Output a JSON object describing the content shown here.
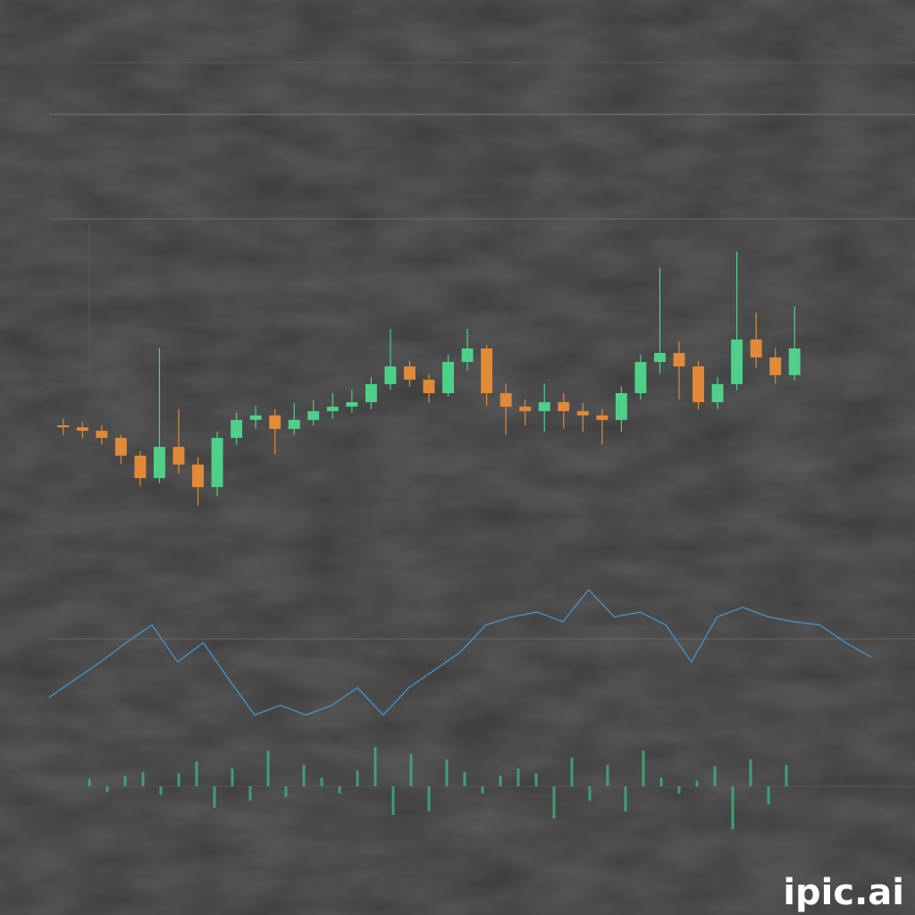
{
  "watermark": "ipic.ai",
  "chart_data": [
    {
      "type": "candlestick",
      "up_color": "#4fd08a",
      "down_color": "#e08a3a",
      "ylim": [
        0,
        100
      ],
      "open": [
        40.0,
        39.4,
        38.3,
        36.1,
        30.6,
        23.6,
        33.3,
        27.8,
        20.8,
        36.1,
        41.7,
        43.1,
        38.9,
        41.7,
        44.4,
        45.8,
        47.2,
        52.8,
        58.3,
        54.2,
        50.0,
        59.7,
        63.9,
        50.0,
        45.8,
        44.4,
        47.2,
        44.4,
        43.1,
        41.7,
        50.0,
        59.7,
        62.5,
        58.3,
        47.2,
        52.8,
        66.7,
        61.1,
        55.6
      ],
      "close": [
        39.4,
        38.3,
        36.1,
        30.6,
        23.6,
        33.3,
        27.8,
        20.8,
        36.1,
        41.7,
        43.1,
        38.9,
        41.7,
        44.4,
        45.8,
        47.2,
        52.8,
        58.3,
        54.2,
        50.0,
        59.7,
        63.9,
        50.0,
        45.8,
        44.4,
        47.2,
        44.4,
        43.1,
        41.7,
        50.0,
        59.7,
        62.5,
        58.3,
        47.2,
        52.8,
        66.7,
        61.1,
        55.6,
        63.9
      ],
      "high": [
        42,
        41,
        40,
        37,
        32,
        64,
        45,
        30,
        38,
        44,
        46,
        45,
        47,
        48,
        50,
        51,
        55,
        70,
        60,
        56,
        62,
        70,
        65,
        53,
        48,
        53,
        50,
        47,
        45,
        52,
        62,
        89,
        66,
        60,
        55,
        94,
        75,
        64,
        77
      ],
      "low": [
        37,
        36,
        34,
        28,
        21,
        22,
        25,
        15,
        18,
        34,
        39,
        31,
        37,
        40,
        42,
        44,
        45,
        51,
        52,
        47,
        49,
        57,
        46,
        37,
        40,
        38,
        39,
        38,
        34,
        38,
        48,
        56,
        48,
        45,
        45,
        51,
        58,
        53,
        54
      ]
    },
    {
      "type": "line",
      "color": "#4a8fc0",
      "ylim": [
        0,
        100
      ],
      "values": [
        22,
        33,
        44,
        56,
        67,
        44,
        56,
        33,
        11,
        17,
        11,
        17,
        28,
        11,
        28,
        39,
        50,
        67,
        72,
        75,
        69,
        89,
        72,
        75,
        67,
        44,
        72,
        78,
        72,
        69,
        67,
        56,
        47
      ]
    },
    {
      "type": "volume",
      "color": "#3fae7a",
      "ylim": [
        -100,
        100
      ],
      "values": [
        10,
        -8,
        14,
        20,
        -12,
        18,
        35,
        -30,
        25,
        -20,
        50,
        -15,
        30,
        12,
        -10,
        22,
        55,
        -40,
        45,
        -35,
        38,
        20,
        -10,
        15,
        25,
        18,
        -45,
        40,
        -20,
        30,
        -35,
        50,
        12,
        -10,
        8,
        28,
        -60,
        38,
        -25,
        30
      ]
    }
  ]
}
